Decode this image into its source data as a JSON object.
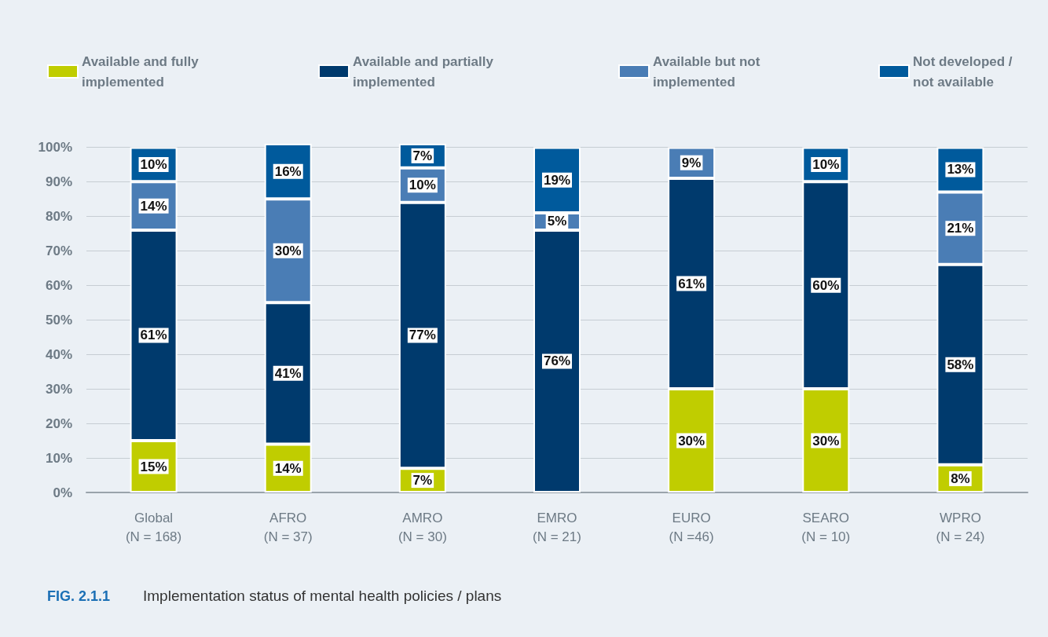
{
  "chart_data": {
    "type": "bar",
    "stacked": true,
    "title": "FIG. 2.1.1",
    "subtitle": "Implementation status of mental health policies / plans",
    "categories": [
      "Global\n(N = 168)",
      "AFRO\n(N = 37)",
      "AMRO\n(N = 30)",
      "EMRO\n(N = 21)",
      "EURO\n(N =46)",
      "SEARO\n(N = 10)",
      "WPRO\n(N = 24)"
    ],
    "series": [
      {
        "name": "Available and fully implemented",
        "color": "#c0cd00",
        "values": [
          15,
          14,
          7,
          0,
          30,
          30,
          8
        ],
        "value_labels": [
          "15%",
          "14%",
          "7%",
          null,
          "30%",
          "30%",
          "8%"
        ]
      },
      {
        "name": "Available and partially implemented",
        "color": "#003a6d",
        "values": [
          61,
          41,
          77,
          76,
          61,
          60,
          58
        ],
        "value_labels": [
          "61%",
          "41%",
          "77%",
          "76%",
          "61%",
          "60%",
          "58%"
        ]
      },
      {
        "name": "Available but not implemented",
        "color": "#4a7db5",
        "values": [
          14,
          30,
          10,
          5,
          9,
          0,
          21
        ],
        "value_labels": [
          "14%",
          "30%",
          "10%",
          "5%",
          "9%",
          null,
          "21%"
        ]
      },
      {
        "name": "Not developed / not available",
        "color": "#005a9c",
        "values": [
          10,
          16,
          7,
          19,
          0,
          10,
          13
        ],
        "value_labels": [
          "10%",
          "16%",
          "7%",
          "19%",
          null,
          "10%",
          "13%"
        ]
      }
    ],
    "ylim": [
      0,
      101
    ],
    "yticks": [
      {
        "value": 0,
        "label": "0%"
      },
      {
        "value": 10,
        "label": "10%"
      },
      {
        "value": 20,
        "label": "20%"
      },
      {
        "value": 30,
        "label": "30%"
      },
      {
        "value": 40,
        "label": "40%"
      },
      {
        "value": 50,
        "label": "50%"
      },
      {
        "value": 60,
        "label": "60%"
      },
      {
        "value": 70,
        "label": "70%"
      },
      {
        "value": 80,
        "label": "80%"
      },
      {
        "value": 90,
        "label": "90%"
      },
      {
        "value": 100,
        "label": "100%"
      }
    ],
    "grid": "y",
    "legend": "top"
  }
}
